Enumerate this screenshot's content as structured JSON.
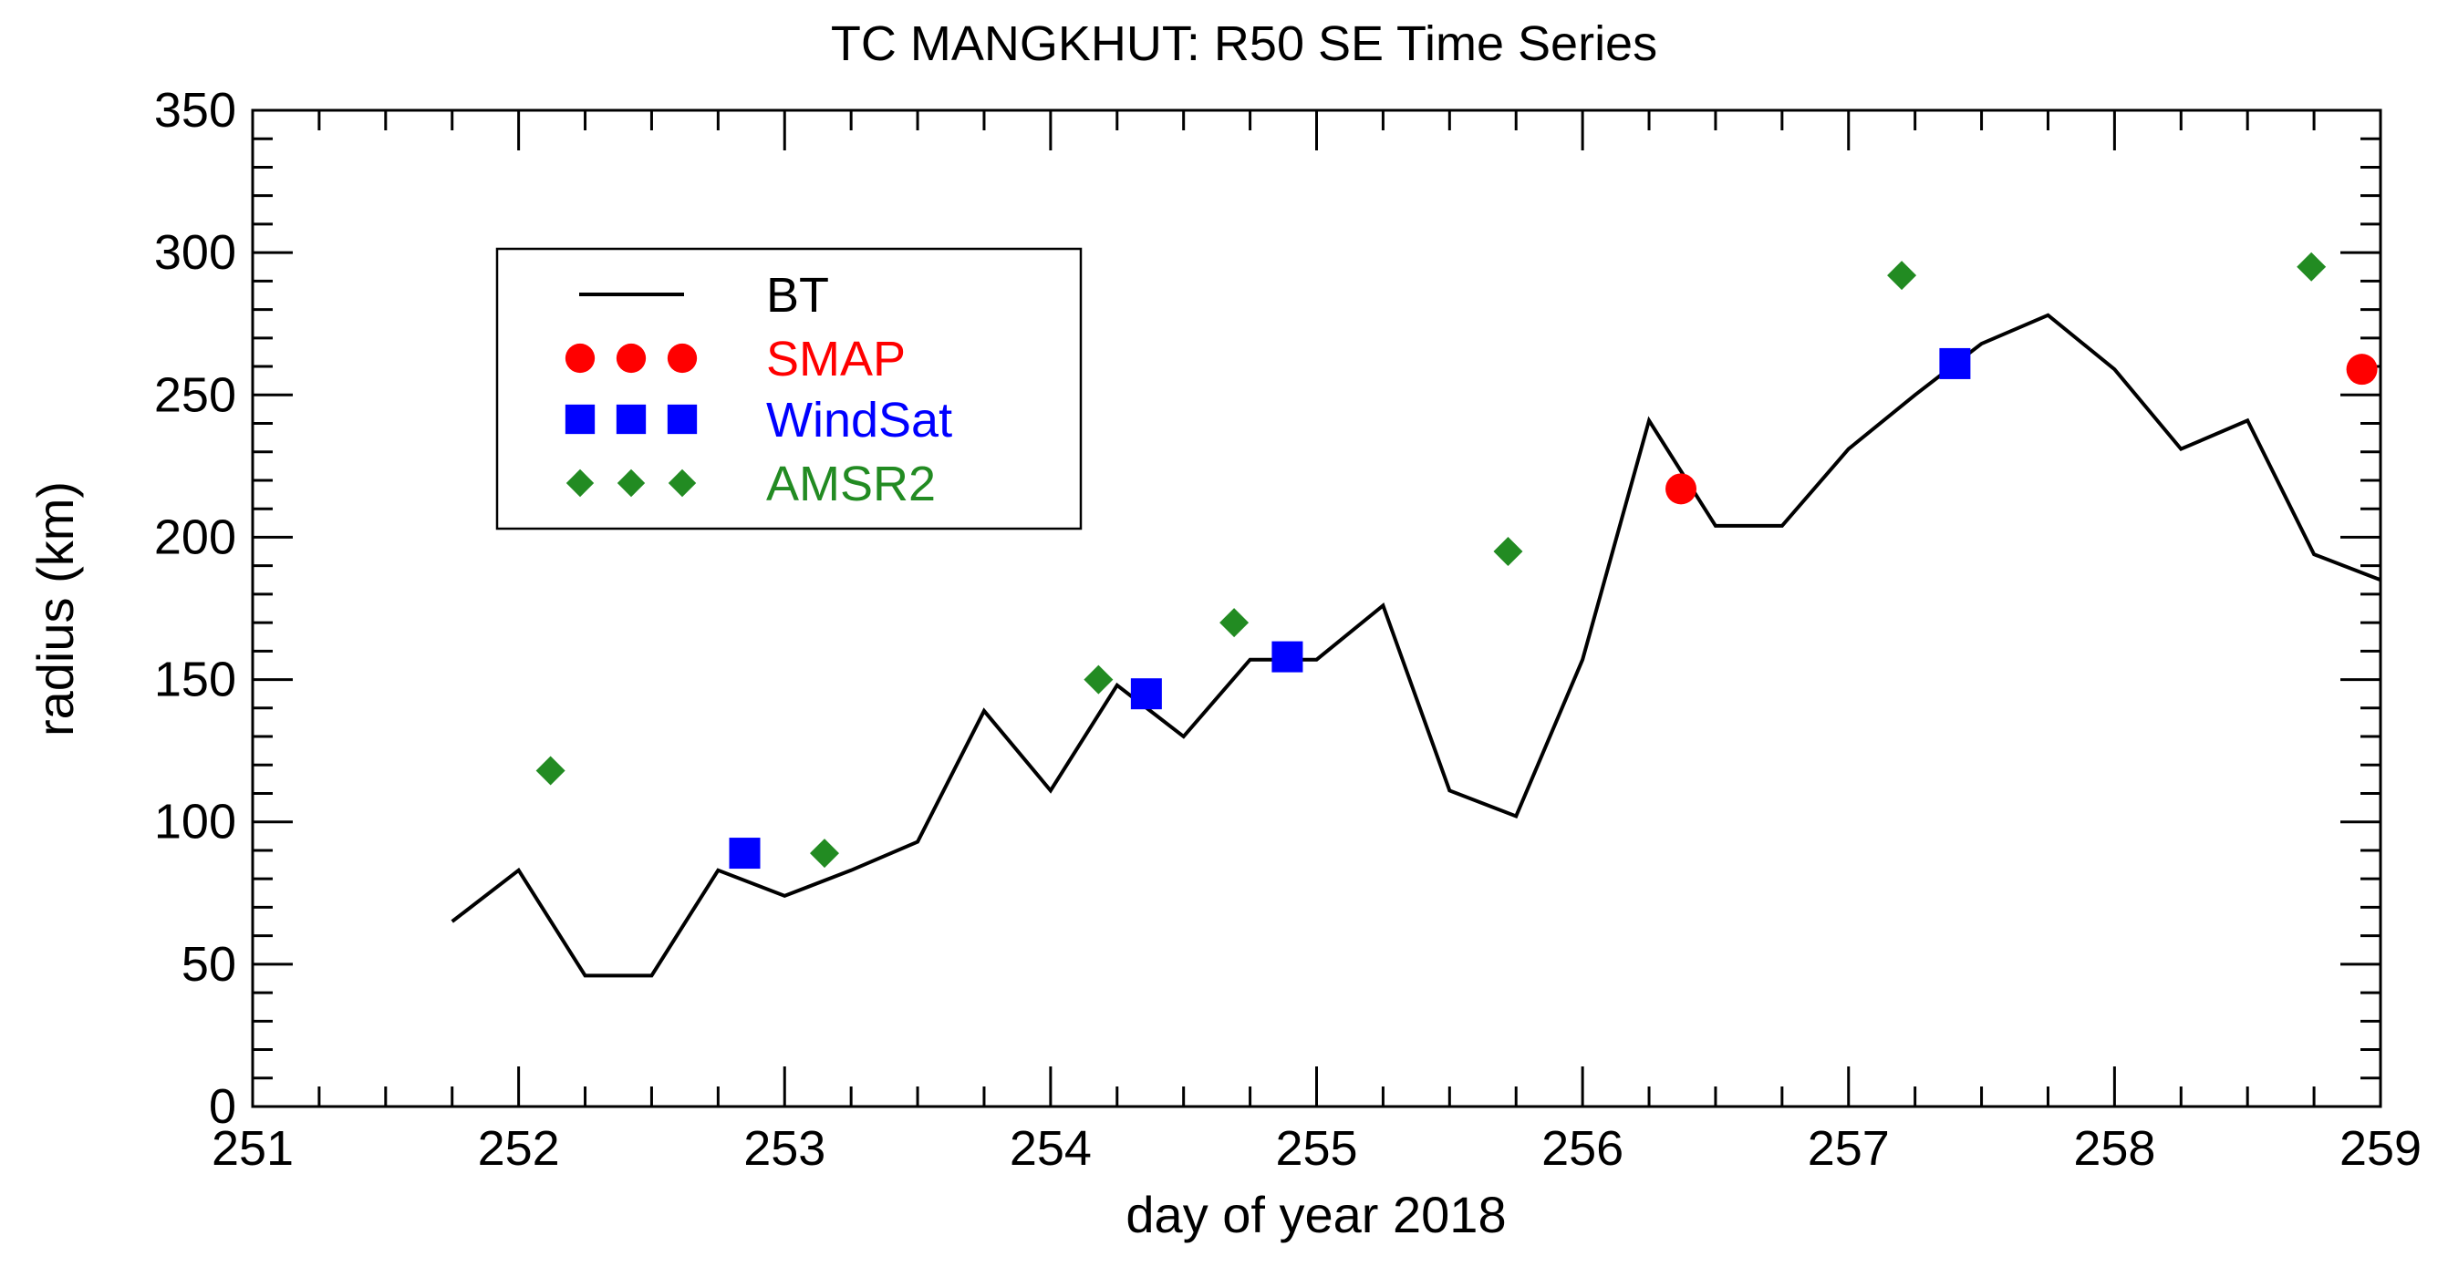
{
  "chart_data": {
    "type": "line",
    "title": "TC MANGKHUT:  R50 SE Time Series",
    "xlabel": "day of year 2018",
    "ylabel": "radius (km)",
    "xlim": [
      251,
      259
    ],
    "ylim": [
      0,
      350
    ],
    "xticks": [
      251,
      252,
      253,
      254,
      255,
      256,
      257,
      258,
      259
    ],
    "yticks": [
      0,
      50,
      100,
      150,
      200,
      250,
      300,
      350
    ],
    "legend_position": "top-left",
    "colors": {
      "bt": "#000000",
      "smap": "#ff0000",
      "windsat": "#0000ff",
      "amsr2": "#228b22"
    },
    "series": [
      {
        "name": "BT",
        "style": "line",
        "x": [
          251.75,
          252.0,
          252.25,
          252.5,
          252.75,
          253.0,
          253.25,
          253.5,
          253.75,
          254.0,
          254.25,
          254.5,
          254.75,
          255.0,
          255.25,
          255.5,
          255.75,
          256.0,
          256.25,
          256.5,
          256.75,
          257.0,
          257.25,
          257.5,
          257.75,
          258.0,
          258.25,
          258.5,
          258.75,
          259.0
        ],
        "y": [
          65,
          83,
          46,
          46,
          83,
          74,
          83,
          93,
          139,
          111,
          148,
          130,
          157,
          157,
          176,
          111,
          102,
          157,
          241,
          204,
          204,
          231,
          250,
          268,
          278,
          259,
          231,
          241,
          194,
          185
        ]
      },
      {
        "name": "SMAP",
        "style": "circle",
        "x": [
          256.37,
          258.93
        ],
        "y": [
          217,
          259
        ]
      },
      {
        "name": "WindSat",
        "style": "square",
        "x": [
          252.85,
          254.36,
          254.89,
          257.4
        ],
        "y": [
          89,
          145,
          158,
          261
        ]
      },
      {
        "name": "AMSR2",
        "style": "diamond",
        "x": [
          252.12,
          253.15,
          254.18,
          254.69,
          255.72,
          257.2,
          258.74
        ],
        "y": [
          118,
          89,
          150,
          170,
          195,
          292,
          295
        ]
      }
    ]
  }
}
